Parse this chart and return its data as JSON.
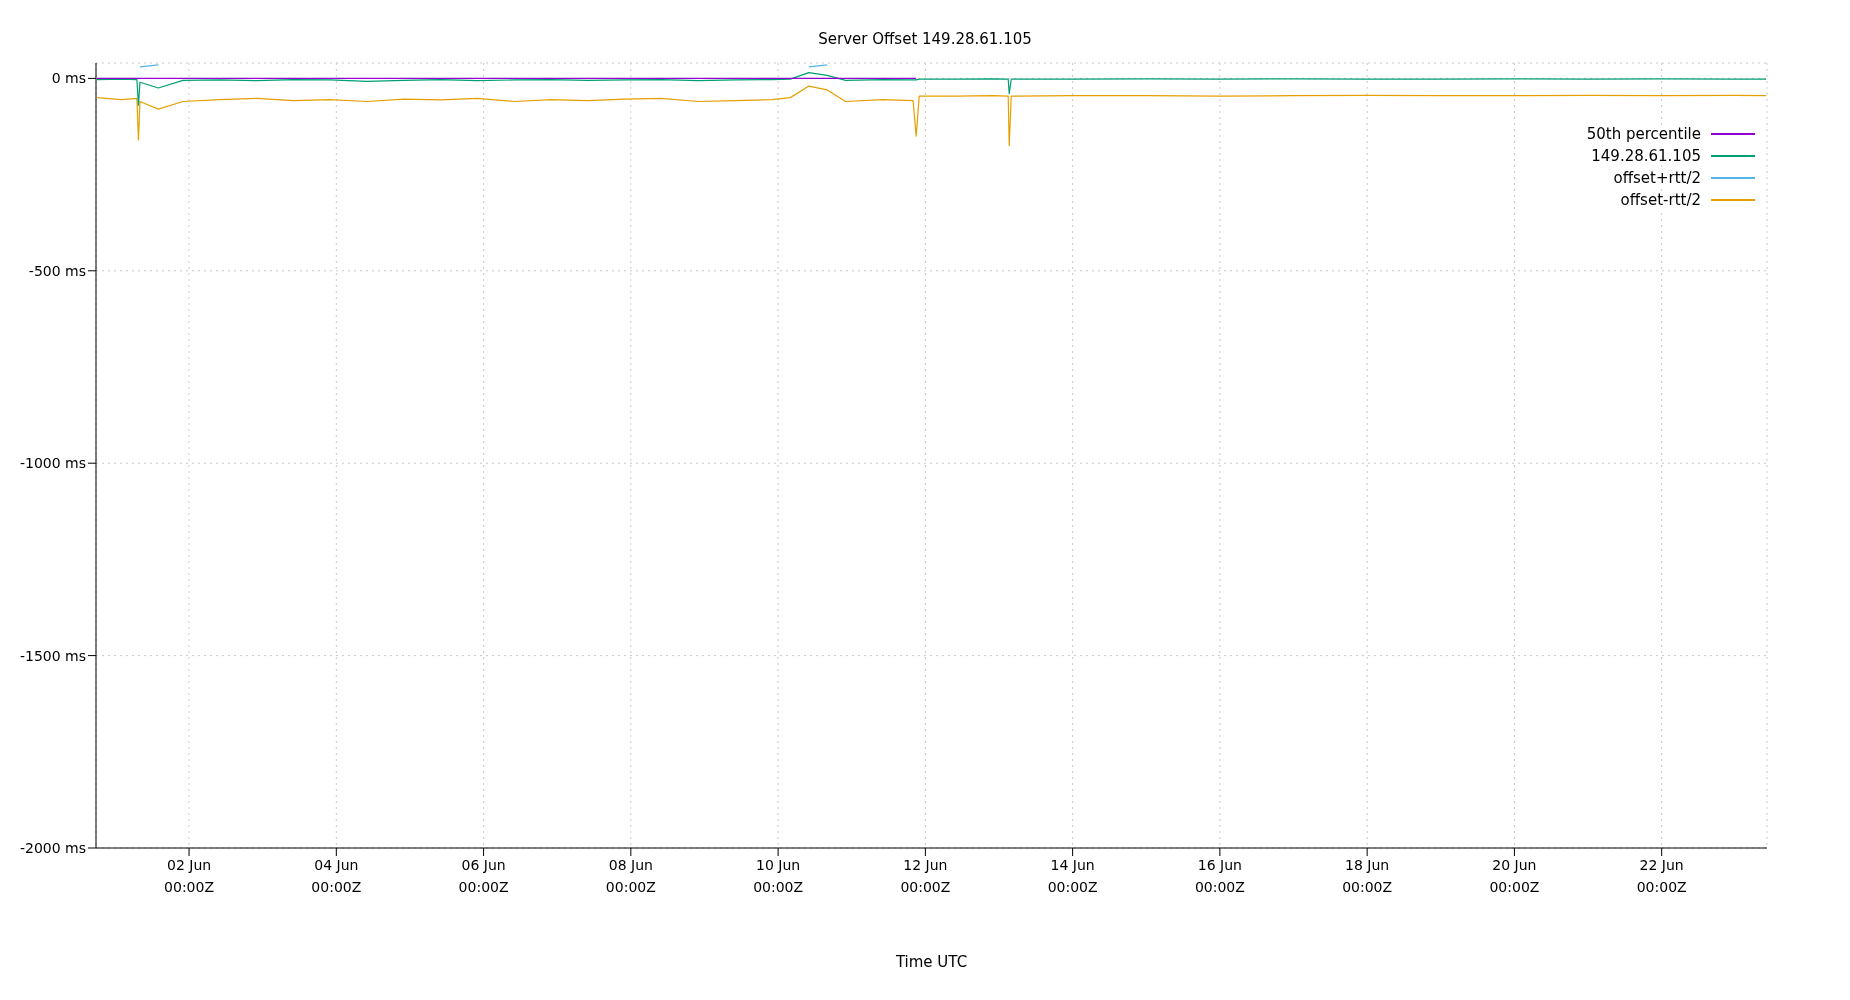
{
  "chart_data": {
    "type": "line",
    "title": "Server Offset 149.28.61.105",
    "xlabel": "Time UTC",
    "x": [
      "--05-31T18:00",
      "--06-01T02:00",
      "--06-01T07:00",
      "--06-01T07:30",
      "--06-01T08:00",
      "--06-01T14:00",
      "--06-01T22:00",
      "--06-02T10:00",
      "--06-02T22:00",
      "--06-03T10:00",
      "--06-03T22:00",
      "--06-04T10:00",
      "--06-04T22:00",
      "--06-05T10:00",
      "--06-05T22:00",
      "--06-06T10:00",
      "--06-06T22:00",
      "--06-07T10:00",
      "--06-07T22:00",
      "--06-08T10:00",
      "--06-08T22:00",
      "--06-09T10:00",
      "--06-09T22:00",
      "--06-10T04:00",
      "--06-10T10:00",
      "--06-10T16:00",
      "--06-10T22:00",
      "--06-11T10:00",
      "--06-11T20:00",
      "--06-11T21:00",
      "--06-11T22:00",
      "--06-12T10:00",
      "--06-12T22:00",
      "--06-13T03:00",
      "--06-13T03:20",
      "--06-13T04:00",
      "--06-14T00:00",
      "--06-15T00:00",
      "--06-16T00:00",
      "--06-17T00:00",
      "--06-18T00:00",
      "--06-19T00:00",
      "--06-20T00:00",
      "--06-21T00:00",
      "--06-22T00:00",
      "--06-23T00:00",
      "--06-23T10:00"
    ],
    "series": [
      {
        "name": "50th percentile",
        "color": "#9400d3",
        "values": [
          0,
          0,
          0,
          0,
          0,
          0,
          0,
          0,
          0,
          0,
          0,
          0,
          0,
          0,
          0,
          0,
          0,
          0,
          0,
          0,
          0,
          0,
          0,
          0,
          0,
          0,
          0,
          0,
          0,
          0,
          null,
          null,
          null,
          null,
          null,
          null,
          null,
          null,
          null,
          null,
          null,
          null,
          null,
          null,
          null,
          null,
          null
        ]
      },
      {
        "name": "149.28.61.105",
        "color": "#009e73",
        "values": [
          -3,
          -2,
          -3,
          -70,
          -10,
          -25,
          -5,
          -4,
          -6,
          -3,
          -4,
          -8,
          -5,
          -3,
          -6,
          -4,
          -3,
          -5,
          -4,
          -3,
          -6,
          -4,
          -3,
          -2,
          15,
          8,
          -5,
          -3,
          -4,
          -4,
          -2,
          -2,
          -1,
          -2,
          -40,
          -2,
          -2,
          -1,
          -2,
          -1,
          -2,
          -2,
          -1,
          -2,
          -1,
          -2,
          -2
        ]
      },
      {
        "name": "offset+rtt/2",
        "color": "#56b4e9",
        "values": [
          null,
          null,
          null,
          null,
          30,
          35,
          null,
          null,
          null,
          null,
          null,
          null,
          null,
          null,
          null,
          null,
          null,
          null,
          null,
          null,
          null,
          null,
          null,
          null,
          30,
          35,
          null,
          null,
          null,
          null,
          null,
          null,
          null,
          null,
          null,
          null,
          null,
          null,
          null,
          null,
          null,
          null,
          null,
          null,
          null,
          null,
          null
        ]
      },
      {
        "name": "offset-rtt/2",
        "color": "#e69f00",
        "values": [
          -50,
          -55,
          -52,
          -160,
          -60,
          -80,
          -60,
          -55,
          -52,
          -58,
          -55,
          -60,
          -54,
          -56,
          -52,
          -60,
          -55,
          -58,
          -54,
          -52,
          -60,
          -58,
          -55,
          -50,
          -20,
          -30,
          -60,
          -55,
          -58,
          -150,
          -46,
          -46,
          -45,
          -46,
          -175,
          -46,
          -45,
          -45,
          -46,
          -45,
          -44,
          -45,
          -45,
          -44,
          -45,
          -44,
          -45
        ]
      }
    ],
    "xlim": [
      "--05-31T17:40",
      "--06-23T10:20"
    ],
    "xticks": [
      {
        "value": "--06-02",
        "label": "02 Jun\n00:00Z"
      },
      {
        "value": "--06-04",
        "label": "04 Jun\n00:00Z"
      },
      {
        "value": "--06-06",
        "label": "06 Jun\n00:00Z"
      },
      {
        "value": "--06-08",
        "label": "08 Jun\n00:00Z"
      },
      {
        "value": "--06-10",
        "label": "10 Jun\n00:00Z"
      },
      {
        "value": "--06-12",
        "label": "12 Jun\n00:00Z"
      },
      {
        "value": "--06-14",
        "label": "14 Jun\n00:00Z"
      },
      {
        "value": "--06-16",
        "label": "16 Jun\n00:00Z"
      },
      {
        "value": "--06-18",
        "label": "18 Jun\n00:00Z"
      },
      {
        "value": "--06-20",
        "label": "20 Jun\n00:00Z"
      },
      {
        "value": "--06-22",
        "label": "22 Jun\n00:00Z"
      }
    ],
    "ylim": [
      -2000,
      40
    ],
    "yticks": [
      {
        "value": 0,
        "label": "0 ms"
      },
      {
        "value": -500,
        "label": "-500 ms"
      },
      {
        "value": -1000,
        "label": "-1000 ms"
      },
      {
        "value": -1500,
        "label": "-1500 ms"
      },
      {
        "value": -2000,
        "label": "-2000 ms"
      }
    ],
    "grid": true,
    "legend": "top right",
    "marker": "none",
    "line_style": "solid"
  }
}
